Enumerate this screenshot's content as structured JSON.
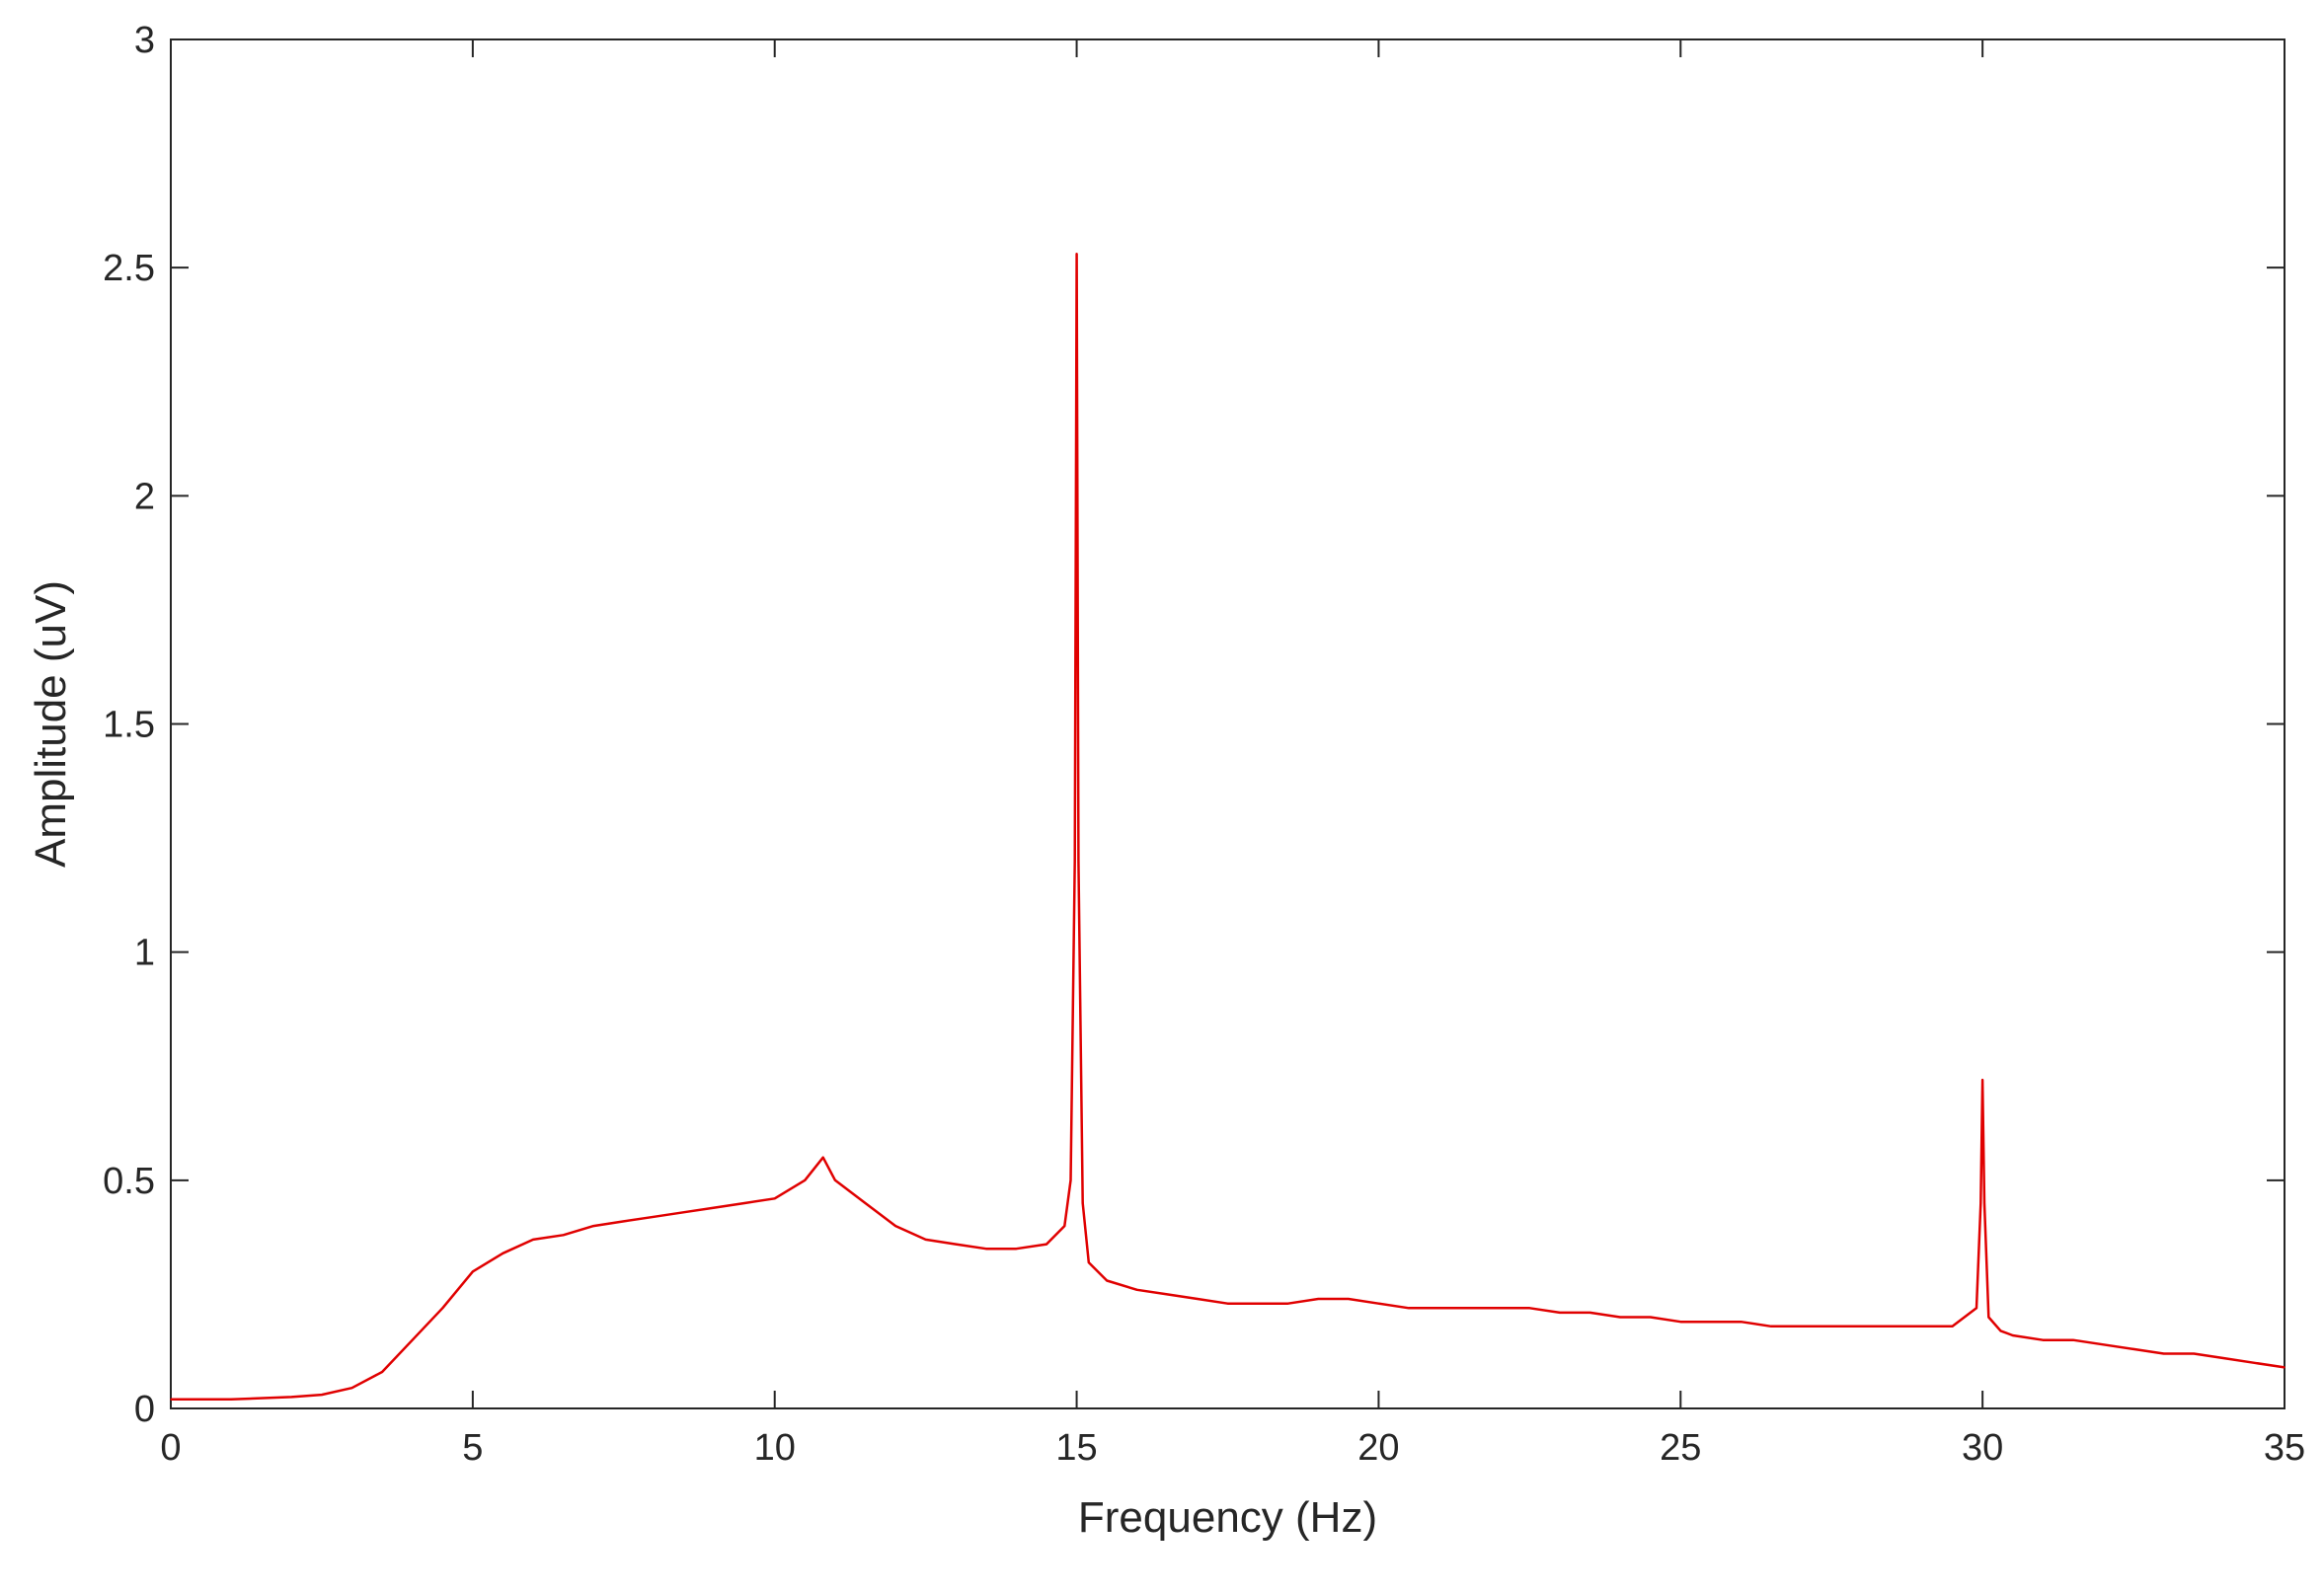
{
  "chart_data": {
    "type": "line",
    "title": "",
    "xlabel": "Frequency (Hz)",
    "ylabel": "Amplitude (uV)",
    "xlim": [
      0,
      35
    ],
    "ylim": [
      0,
      3
    ],
    "xticks": [
      0,
      5,
      10,
      15,
      20,
      25,
      30,
      35
    ],
    "xtick_labels": [
      "0",
      "5",
      "10",
      "15",
      "20",
      "25",
      "30",
      "35"
    ],
    "yticks": [
      0,
      0.5,
      1,
      1.5,
      2,
      2.5,
      3
    ],
    "ytick_labels": [
      "0",
      "0.5",
      "1",
      "1.5",
      "2",
      "2.5",
      "3"
    ],
    "grid": false,
    "box": true,
    "series": [
      {
        "color": "#e00000",
        "x": [
          0,
          1,
          2,
          2.5,
          3,
          3.5,
          4,
          4.5,
          5,
          5.5,
          6,
          6.5,
          7,
          7.5,
          8,
          8.5,
          9,
          9.5,
          10,
          10.5,
          10.8,
          11,
          11.5,
          12,
          12.5,
          13,
          13.5,
          14,
          14.5,
          14.8,
          14.9,
          14.97,
          15.0,
          15.03,
          15.1,
          15.2,
          15.5,
          16,
          16.5,
          17,
          17.5,
          18,
          18.5,
          19,
          19.5,
          20,
          20.5,
          21,
          21.5,
          22,
          22.5,
          23,
          23.5,
          24,
          24.5,
          25,
          25.5,
          26,
          26.5,
          27,
          27.5,
          28,
          28.5,
          29,
          29.5,
          29.9,
          29.97,
          30.0,
          30.03,
          30.1,
          30.3,
          30.5,
          31,
          31.5,
          32,
          32.5,
          33,
          33.5,
          34,
          34.5,
          35
        ],
        "y": [
          0.02,
          0.02,
          0.025,
          0.03,
          0.045,
          0.08,
          0.15,
          0.22,
          0.3,
          0.34,
          0.37,
          0.38,
          0.4,
          0.41,
          0.42,
          0.43,
          0.44,
          0.45,
          0.46,
          0.5,
          0.55,
          0.5,
          0.45,
          0.4,
          0.37,
          0.36,
          0.35,
          0.35,
          0.36,
          0.4,
          0.5,
          1.2,
          2.53,
          1.2,
          0.45,
          0.32,
          0.28,
          0.26,
          0.25,
          0.24,
          0.23,
          0.23,
          0.23,
          0.24,
          0.24,
          0.23,
          0.22,
          0.22,
          0.22,
          0.22,
          0.22,
          0.21,
          0.21,
          0.2,
          0.2,
          0.19,
          0.19,
          0.19,
          0.18,
          0.18,
          0.18,
          0.18,
          0.18,
          0.18,
          0.18,
          0.22,
          0.45,
          0.72,
          0.45,
          0.2,
          0.17,
          0.16,
          0.15,
          0.15,
          0.14,
          0.13,
          0.12,
          0.12,
          0.11,
          0.1,
          0.09
        ]
      }
    ]
  }
}
